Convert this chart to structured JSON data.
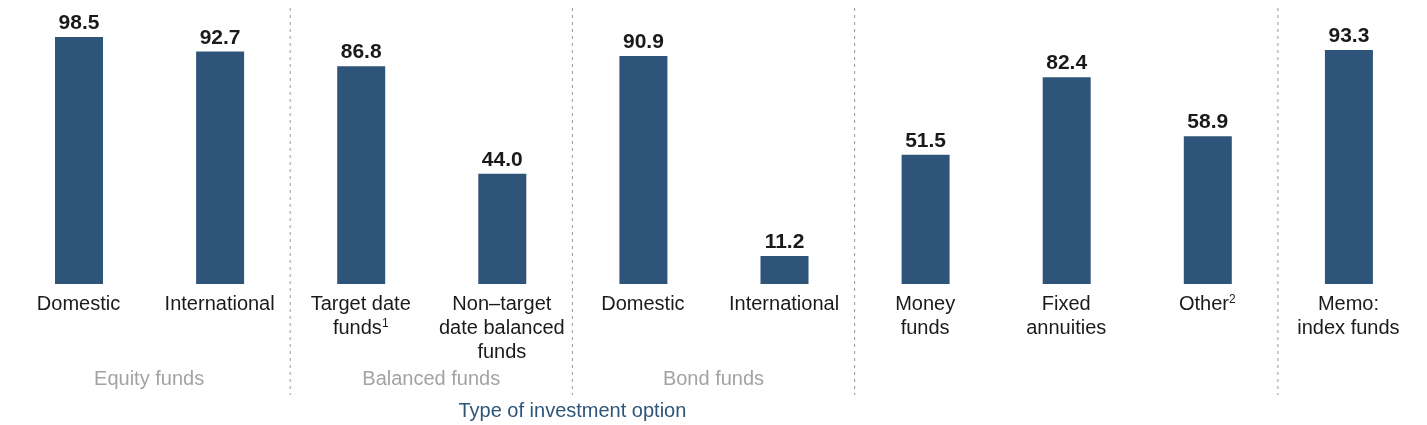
{
  "chart_data": {
    "type": "bar",
    "xlabel": "Type of investment option",
    "categories": [
      "Domestic",
      "International",
      "Target date\nfunds$^{1}$",
      "Non–target\ndate balanced\nfunds",
      "Domestic",
      "International",
      "Money\nfunds",
      "Fixed\nannuities",
      "Other$^{2}$",
      "Memo:\nindex funds"
    ],
    "values": [
      98.5,
      92.7,
      86.8,
      44.0,
      90.9,
      11.2,
      51.5,
      82.4,
      58.9,
      93.3
    ],
    "color": "#2f5479",
    "value_labels": [
      "98.5",
      "92.7",
      "86.8",
      "44.0",
      "90.9",
      "11.2",
      "51.5",
      "82.4",
      "58.9",
      "93.3"
    ],
    "annotations": [
      "Equity funds",
      "Balanced funds",
      "Bond funds"
    ]
  }
}
